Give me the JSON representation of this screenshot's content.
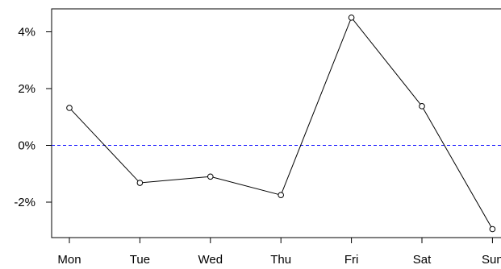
{
  "chart_data": {
    "type": "line",
    "title": "",
    "xlabel": "",
    "ylabel": "",
    "categories": [
      "Mon",
      "Tue",
      "Wed",
      "Thu",
      "Fri",
      "Sat",
      "Sun"
    ],
    "series": [
      {
        "values": [
          1.32,
          -1.32,
          -1.1,
          -1.75,
          4.5,
          1.38,
          -2.95
        ]
      }
    ],
    "y_ticks": [
      -2,
      0,
      2,
      4
    ],
    "y_tick_labels": [
      "-2%",
      "0%",
      "2%",
      "4%"
    ],
    "ylim": [
      -3.2,
      4.75
    ],
    "reference_line": {
      "y": 0,
      "style": "dashed",
      "color": "#1a1aff"
    },
    "line_color": "#000000",
    "marker": "open-circle",
    "grid": false,
    "legend": "none"
  }
}
